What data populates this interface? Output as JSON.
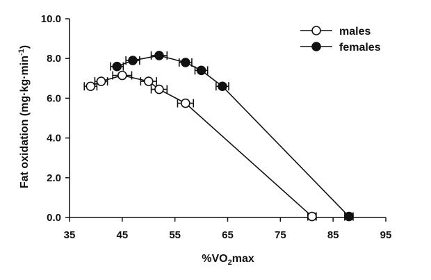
{
  "chart_data": {
    "type": "line",
    "title": "",
    "xlabel": "%VO2max",
    "ylabel": "Fat oxidation (mg·kg·min-1)",
    "xlim": [
      35,
      95
    ],
    "ylim": [
      0,
      10
    ],
    "xticks": [
      35,
      45,
      55,
      65,
      75,
      85,
      95
    ],
    "yticks": [
      "0.0",
      "2.0",
      "4.0",
      "6.0",
      "8.0",
      "10.0"
    ],
    "legend_position": "top-right",
    "series": [
      {
        "name": "males",
        "marker": "open-circle",
        "x": [
          39,
          41,
          45,
          50,
          52,
          57,
          81
        ],
        "y": [
          6.6,
          6.85,
          7.15,
          6.85,
          6.45,
          5.75,
          0.05
        ],
        "xerr": [
          1.2,
          1.2,
          1.8,
          1.5,
          1.5,
          1.5,
          0.8
        ]
      },
      {
        "name": "females",
        "marker": "filled-circle",
        "x": [
          44,
          47,
          52,
          57,
          60,
          64,
          88
        ],
        "y": [
          7.6,
          7.9,
          8.15,
          7.8,
          7.4,
          6.6,
          0.05
        ],
        "xerr": [
          1.2,
          1.3,
          1.5,
          1.2,
          1.2,
          1.2,
          0.8
        ]
      }
    ]
  }
}
